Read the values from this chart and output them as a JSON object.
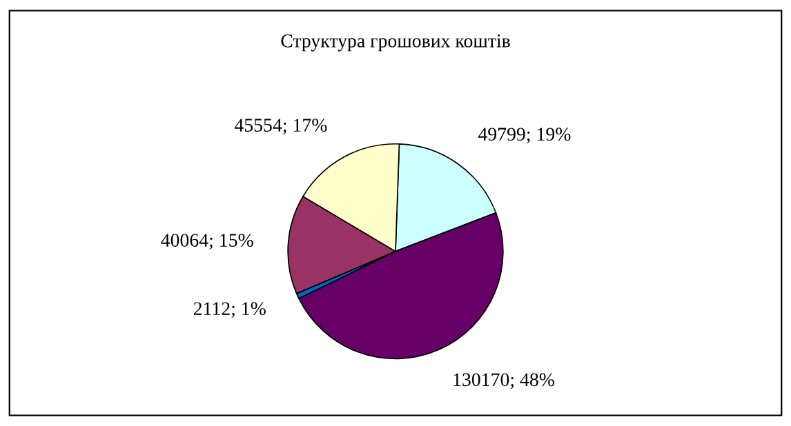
{
  "chart_data": {
    "type": "pie",
    "title": "Структура грошових коштів",
    "categories": [
      null,
      null,
      null,
      null,
      null
    ],
    "values": [
      49799,
      130170,
      2112,
      40064,
      45554
    ],
    "colors": [
      "#ccffff",
      "#660066",
      "#0066cc",
      "#993366",
      "#ffffcc"
    ],
    "value_labels": [
      "49799; 19%",
      "130170; 48%",
      "2112; 1%",
      "40064; 15%",
      "45554; 17%"
    ],
    "legend": false
  }
}
